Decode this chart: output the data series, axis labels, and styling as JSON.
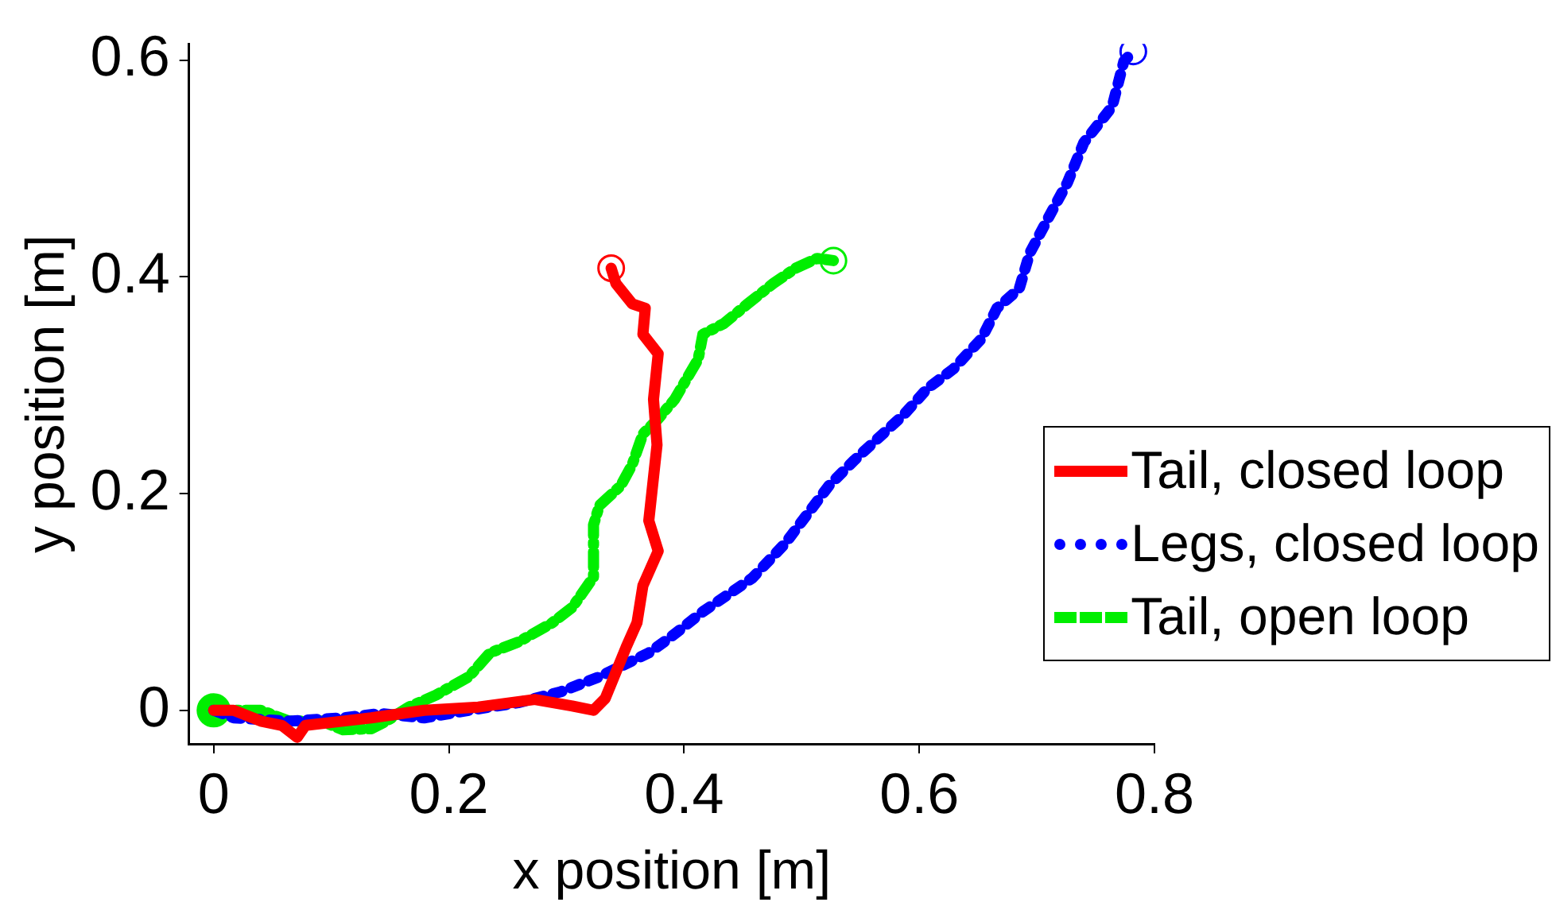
{
  "chart_data": {
    "type": "line",
    "xlabel": "x position [m]",
    "ylabel": "y position [m]",
    "xlim": [
      -0.021,
      0.8
    ],
    "ylim": [
      -0.031,
      0.615
    ],
    "xticks": [
      0,
      0.2,
      0.4,
      0.6,
      0.8
    ],
    "yticks": [
      0,
      0.2,
      0.4,
      0.6
    ],
    "grid": false,
    "legend": "right",
    "marker": "none",
    "series": [
      {
        "name": "Tail, closed loop",
        "color": "#ff0000",
        "line_style": "solid",
        "x": [
          0,
          0.017,
          0.04,
          0.058,
          0.071,
          0.078,
          0.11,
          0.134,
          0.179,
          0.225,
          0.273,
          0.305,
          0.323,
          0.333,
          0.342,
          0.351,
          0.36,
          0.365,
          0.378,
          0.37,
          0.377,
          0.374,
          0.378,
          0.365,
          0.367,
          0.356,
          0.342,
          0.338
        ],
        "values": [
          0,
          0,
          -0.01,
          -0.014,
          -0.025,
          -0.014,
          -0.01,
          -0.007,
          0,
          0.003,
          0.01,
          0.004,
          0,
          0.011,
          0.035,
          0.059,
          0.081,
          0.115,
          0.147,
          0.175,
          0.245,
          0.287,
          0.329,
          0.347,
          0.371,
          0.375,
          0.394,
          0.408
        ]
      },
      {
        "name": "Legs, closed loop",
        "color": "#0000ff",
        "line_style": "dotted",
        "x": [
          0,
          0.017,
          0.064,
          0.11,
          0.142,
          0.179,
          0.217,
          0.259,
          0.295,
          0.328,
          0.37,
          0.388,
          0.416,
          0.458,
          0.486,
          0.523,
          0.545,
          0.569,
          0.587,
          0.607,
          0.629,
          0.653,
          0.666,
          0.685,
          0.694,
          0.712,
          0.726,
          0.74,
          0.764,
          0.774,
          0.782
        ],
        "values": [
          0,
          -0.007,
          -0.01,
          -0.007,
          -0.003,
          -0.007,
          0,
          0.007,
          0.017,
          0.031,
          0.053,
          0.067,
          0.091,
          0.122,
          0.154,
          0.207,
          0.231,
          0.255,
          0.273,
          0.297,
          0.315,
          0.343,
          0.371,
          0.389,
          0.422,
          0.459,
          0.487,
          0.524,
          0.557,
          0.599,
          0.608
        ]
      },
      {
        "name": "Tail, open loop",
        "color": "#00ee00",
        "line_style": "dashed",
        "x": [
          0,
          0.04,
          0.064,
          0.092,
          0.11,
          0.134,
          0.147,
          0.166,
          0.189,
          0.217,
          0.235,
          0.259,
          0.287,
          0.305,
          0.323,
          0.323,
          0.328,
          0.346,
          0.356,
          0.365,
          0.378,
          0.392,
          0.412,
          0.416,
          0.434,
          0.454,
          0.476,
          0.495,
          0.513,
          0.527
        ],
        "values": [
          0,
          0,
          -0.01,
          -0.01,
          -0.018,
          -0.017,
          -0.01,
          0.003,
          0.014,
          0.031,
          0.053,
          0.063,
          0.08,
          0.095,
          0.123,
          0.171,
          0.189,
          0.207,
          0.227,
          0.255,
          0.269,
          0.287,
          0.324,
          0.347,
          0.357,
          0.375,
          0.394,
          0.408,
          0.417,
          0.415
        ]
      }
    ]
  }
}
